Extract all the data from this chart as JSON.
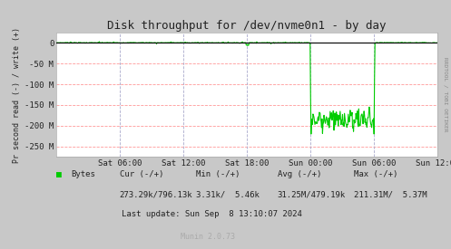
{
  "title": "Disk throughput for /dev/nvme0n1 - by day",
  "ylabel": "Pr second read (-) / write (+)",
  "background_color": "#c8c8c8",
  "plot_bg_color": "#ffffff",
  "grid_h_color": "#ff9999",
  "grid_v_color": "#aaaacc",
  "line_color": "#00cc00",
  "title_color": "#333333",
  "ylim": [
    -275000000,
    25000000
  ],
  "yticks": [
    0,
    -50000000,
    -100000000,
    -150000000,
    -200000000,
    -250000000
  ],
  "ytick_labels": [
    "0",
    "-50 M",
    "-100 M",
    "-150 M",
    "-200 M",
    "-250 M"
  ],
  "xtick_labels": [
    "Sat 06:00",
    "Sat 12:00",
    "Sat 18:00",
    "Sun 00:00",
    "Sun 06:00",
    "Sun 12:00"
  ],
  "xtick_hours": [
    6,
    12,
    18,
    24,
    30,
    36
  ],
  "total_hours": 36,
  "right_label": "RRDTOOL / TOBI OETIKER",
  "legend_color": "#00cc00",
  "legend_label": "Bytes",
  "cur_label": "Cur (-/+)",
  "min_label": "Min (-/+)",
  "avg_label": "Avg (-/+)",
  "max_label": "Max (-/+)",
  "cur_val": "273.29k/796.13k",
  "min_val": "3.31k/  5.46k",
  "avg_val": "31.25M/479.19k",
  "max_val": "211.31M/  5.37M",
  "last_update": "Last update: Sun Sep  8 13:10:07 2024",
  "munin_version": "Munin 2.0.73",
  "num_points": 800,
  "spike_depth": -220000000,
  "activity_depth_mean": -185000000,
  "activity_depth_std": 12000000,
  "noise_std": 1500000
}
